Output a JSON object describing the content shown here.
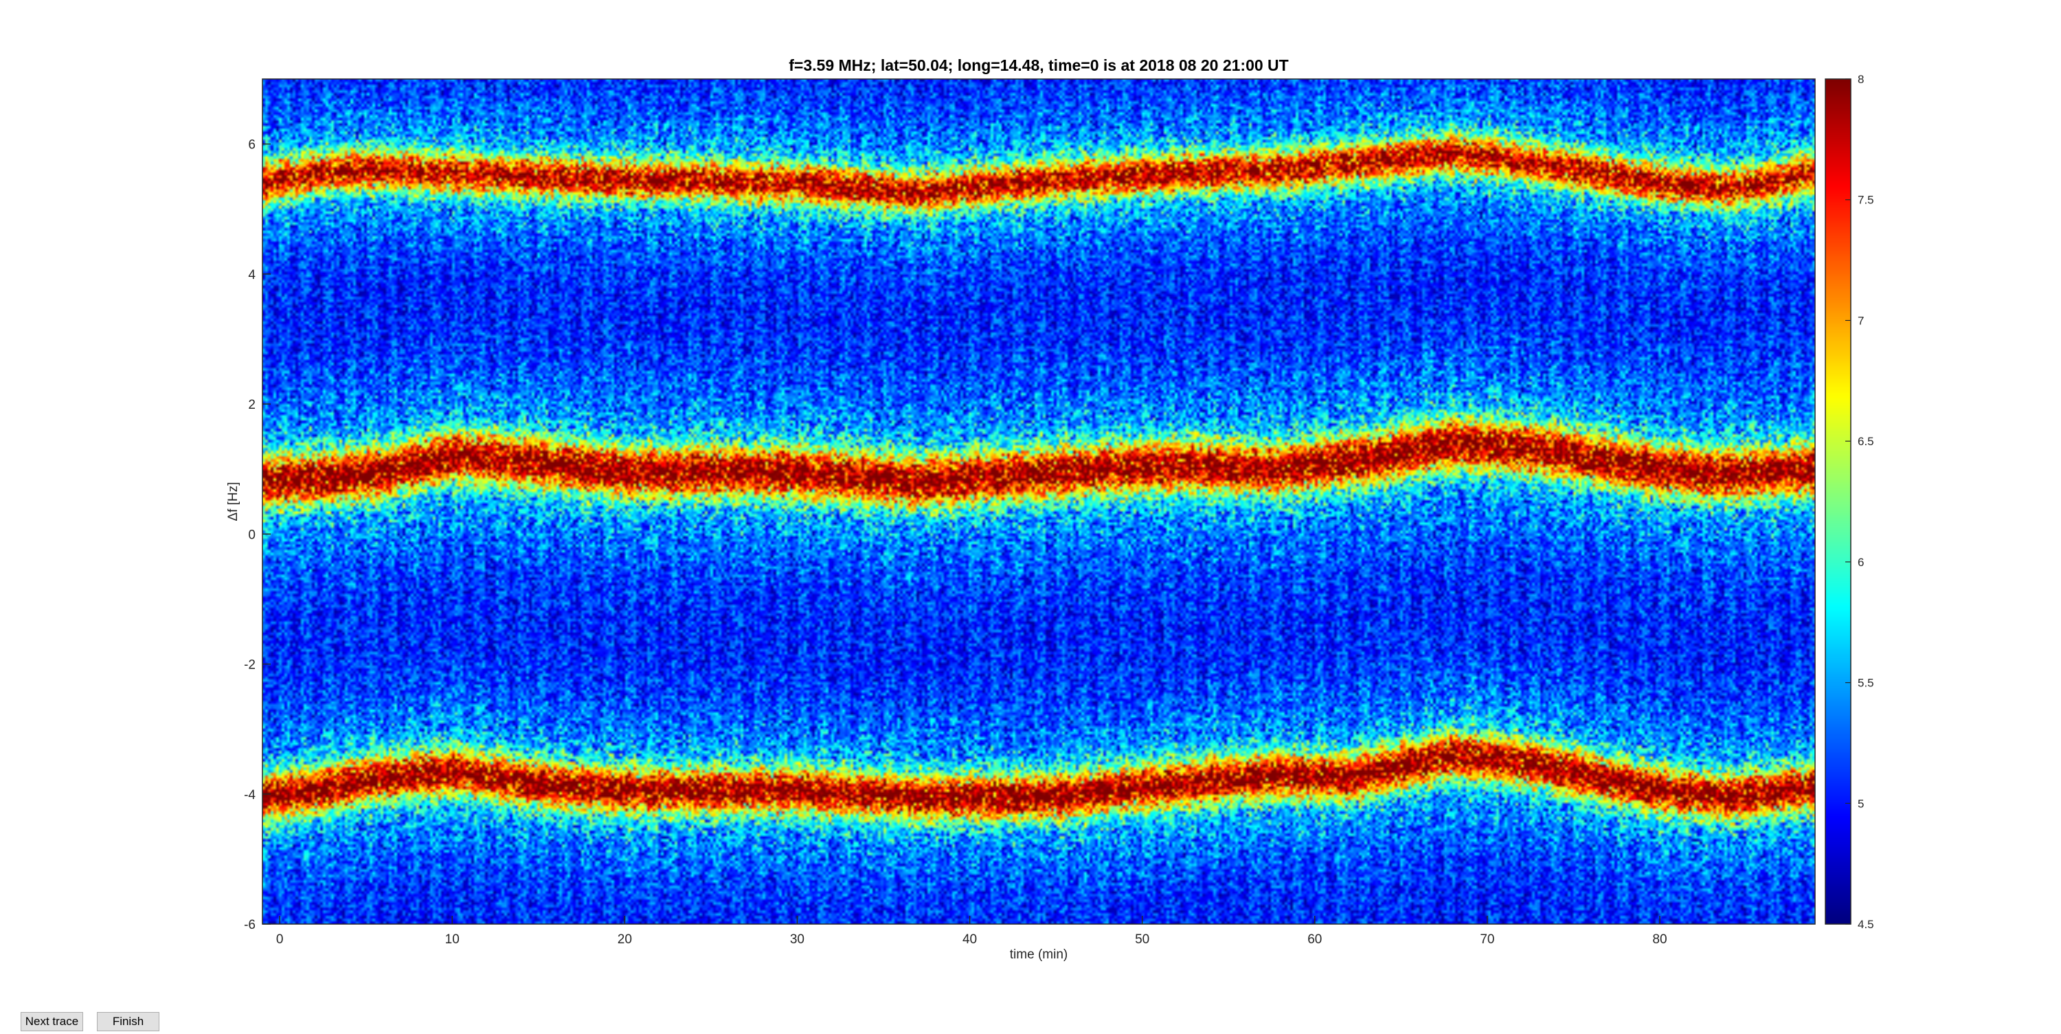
{
  "chart_data": {
    "type": "heatmap",
    "title": "f=3.59 MHz;  lat=50.04; long=14.48, time=0 is at 2018 08 20 21:00 UT",
    "xlabel": "time (min)",
    "ylabel": "Δf [Hz]",
    "xlim": [
      -1,
      89
    ],
    "ylim": [
      -6,
      7
    ],
    "xticks": [
      0,
      10,
      20,
      30,
      40,
      50,
      60,
      70,
      80
    ],
    "yticks": [
      -6,
      -4,
      -2,
      0,
      2,
      4,
      6
    ],
    "colorbar": {
      "min": 4.5,
      "max": 8,
      "ticks": [
        4.5,
        5,
        5.5,
        6,
        6.5,
        7,
        7.5,
        8
      ],
      "colormap": "jet"
    },
    "traces": [
      {
        "t": [
          -1,
          2,
          5,
          10,
          15,
          20,
          30,
          37,
          45,
          52,
          58,
          64,
          68,
          73,
          80,
          84,
          89
        ],
        "df": [
          5.4,
          5.55,
          5.6,
          5.55,
          5.5,
          5.45,
          5.4,
          5.25,
          5.45,
          5.55,
          5.6,
          5.75,
          5.85,
          5.7,
          5.4,
          5.3,
          5.55
        ],
        "intensity": 7.2,
        "spread": 0.35
      },
      {
        "t": [
          -1,
          2,
          6,
          10,
          15,
          20,
          30,
          37,
          45,
          52,
          58,
          64,
          68,
          73,
          80,
          84,
          89
        ],
        "df": [
          0.8,
          0.85,
          0.95,
          1.2,
          1.1,
          0.95,
          0.95,
          0.8,
          0.95,
          1.05,
          1.0,
          1.2,
          1.4,
          1.3,
          1.0,
          0.9,
          1.0
        ],
        "intensity": 7.4,
        "spread": 0.45
      },
      {
        "t": [
          -1,
          2,
          6,
          10,
          15,
          20,
          30,
          37,
          45,
          52,
          58,
          62,
          68,
          73,
          80,
          84,
          89
        ],
        "df": [
          -4.05,
          -3.95,
          -3.75,
          -3.65,
          -3.85,
          -3.95,
          -3.95,
          -4.05,
          -4.05,
          -3.85,
          -3.7,
          -3.75,
          -3.4,
          -3.55,
          -3.95,
          -4.05,
          -3.9
        ],
        "intensity": 7.4,
        "spread": 0.4
      }
    ]
  },
  "buttons": {
    "next": "Next trace",
    "finish": "Finish"
  }
}
